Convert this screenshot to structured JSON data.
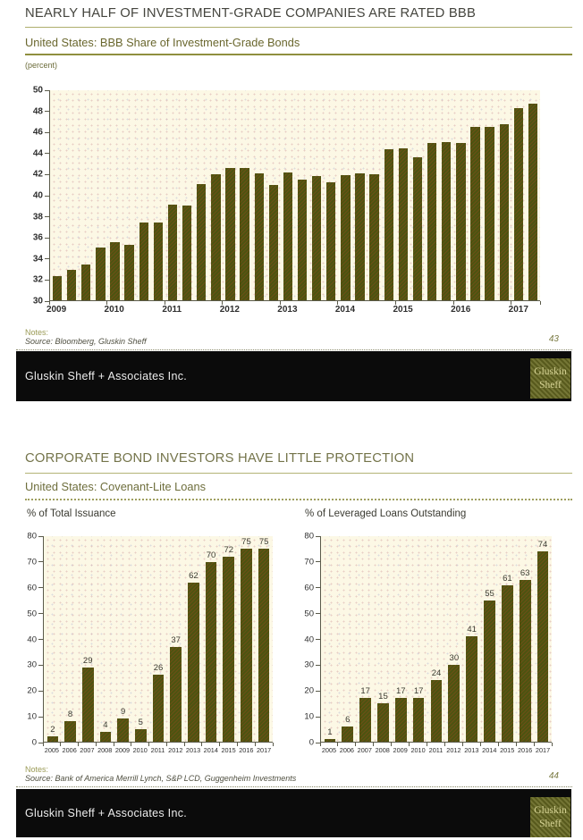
{
  "slide1": {
    "title": "NEARLY HALF OF INVESTMENT-GRADE COMPANIES ARE RATED BBB",
    "subtitle": "United States: BBB Share of Investment-Grade Bonds",
    "unit_label": "(percent)",
    "notes_label": "Notes:",
    "source": "Source: Bloomberg, Gluskin Sheff",
    "page_number": "43",
    "footer": {
      "company": "Gluskin Sheff + Associates Inc.",
      "logo_line1": "Gluskin",
      "logo_line2": "Sheff"
    }
  },
  "slide2": {
    "title": "CORPORATE BOND INVESTORS HAVE LITTLE PROTECTION",
    "subtitle": "United States: Covenant-Lite Loans",
    "notes_label": "Notes:",
    "source": "Source: Bank of America Merrill Lynch, S&P LCD, Guggenheim Investments",
    "page_number": "44",
    "footer": {
      "company": "Gluskin Sheff + Associates Inc.",
      "logo_line1": "Gluskin",
      "logo_line2": "Sheff"
    }
  },
  "colors": {
    "bar": "#4c5410",
    "plot_background": "#fcf8e5",
    "accent_olive": "#8f8f3e",
    "footer_bar": "#0b0b0b"
  },
  "chart_data": [
    {
      "id": "bbb-share-of-investment-grade-bonds",
      "type": "bar",
      "title": "United States: BBB Share of Investment-Grade Bonds",
      "ylabel": "(percent)",
      "ylim": [
        30,
        50
      ],
      "ytick_step": 2,
      "x_year_labels": [
        "2009",
        "2010",
        "2011",
        "2012",
        "2013",
        "2014",
        "2015",
        "2016",
        "2017"
      ],
      "bars_per_year": 4,
      "frequency": "quarterly",
      "grid": false,
      "legend": false,
      "values": [
        32.3,
        32.9,
        33.4,
        35.0,
        35.5,
        35.3,
        37.4,
        37.4,
        39.1,
        39.0,
        41.1,
        42.0,
        42.6,
        42.6,
        42.1,
        41.0,
        42.2,
        41.5,
        41.8,
        41.2,
        41.9,
        42.1,
        42.0,
        44.4,
        44.5,
        43.6,
        45.0,
        45.1,
        45.0,
        46.5,
        46.5,
        46.8,
        48.3,
        48.7
      ],
      "show_value_labels": false
    },
    {
      "id": "covenant-lite-pct-of-total-issuance",
      "type": "bar",
      "title": "% of Total Issuance",
      "ylim": [
        0,
        80
      ],
      "ytick_step": 10,
      "categories": [
        "2005",
        "2006",
        "2007",
        "2008",
        "2009",
        "2010",
        "2011",
        "2012",
        "2013",
        "2014",
        "2015",
        "2016",
        "2017"
      ],
      "values": [
        2,
        8,
        29,
        4,
        9,
        5,
        26,
        37,
        62,
        70,
        72,
        75,
        75
      ],
      "grid": false,
      "legend": false,
      "show_value_labels": true
    },
    {
      "id": "covenant-lite-pct-of-leveraged-loans-outstanding",
      "type": "bar",
      "title": "% of Leveraged Loans Outstanding",
      "ylim": [
        0,
        80
      ],
      "ytick_step": 10,
      "categories": [
        "2005",
        "2006",
        "2007",
        "2008",
        "2009",
        "2010",
        "2011",
        "2012",
        "2013",
        "2014",
        "2015",
        "2016",
        "2017"
      ],
      "values": [
        1,
        6,
        17,
        15,
        17,
        17,
        24,
        30,
        41,
        55,
        61,
        63,
        74
      ],
      "grid": false,
      "legend": false,
      "show_value_labels": true
    }
  ]
}
